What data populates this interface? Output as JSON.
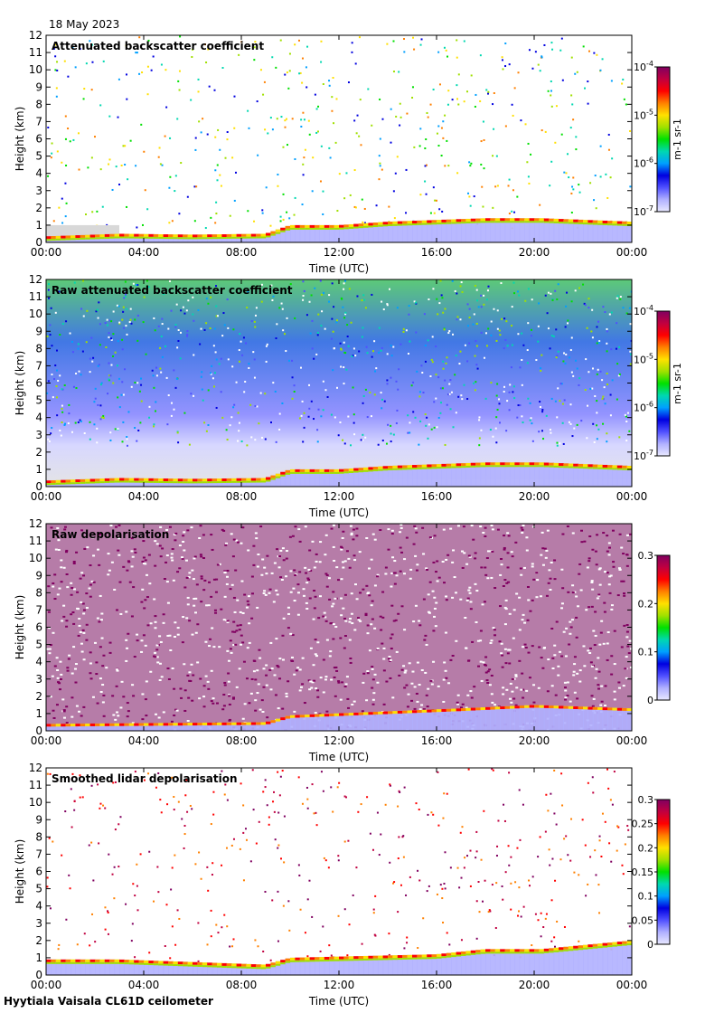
{
  "date": "18 May 2023",
  "footer": "Hyytiala Vaisala CL61D ceilometer",
  "colors": {
    "scale": [
      "#e8e8ff",
      "#b0b0ff",
      "#5050ff",
      "#0000e0",
      "#00a0ff",
      "#00d8b0",
      "#00e000",
      "#a0e000",
      "#ffe000",
      "#ff8000",
      "#ff0000",
      "#c00040",
      "#800060"
    ],
    "background_gray": "#d8d8d8"
  },
  "chart_data": [
    {
      "type": "heatmap",
      "title": "Attenuated backscatter coefficient",
      "xlabel": "Time (UTC)",
      "ylabel": "Height (km)",
      "x_ticks": [
        "00:00",
        "04:00",
        "08:00",
        "12:00",
        "16:00",
        "20:00",
        "00:00"
      ],
      "y_ticks": [
        "0",
        "1",
        "2",
        "3",
        "4",
        "5",
        "6",
        "7",
        "8",
        "9",
        "10",
        "11",
        "12"
      ],
      "xlim": [
        0,
        24
      ],
      "ylim": [
        0,
        12
      ],
      "colorbar": {
        "scale": "log",
        "range": [
          1e-07,
          0.0001
        ],
        "tick_labels": [
          "10-7",
          "10-6",
          "10-5",
          "10-4"
        ],
        "unit": "m-1 sr-1"
      },
      "aerosol_layer_top_km": [
        [
          0,
          0.35
        ],
        [
          3,
          0.5
        ],
        [
          6,
          0.45
        ],
        [
          9,
          0.5
        ],
        [
          10,
          1.0
        ],
        [
          12,
          1.0
        ],
        [
          14,
          1.2
        ],
        [
          16,
          1.3
        ],
        [
          18,
          1.4
        ],
        [
          20.3,
          1.4
        ],
        [
          24,
          1.2
        ]
      ],
      "noise_level": "low"
    },
    {
      "type": "heatmap",
      "title": "Raw attenuated backscatter coefficient",
      "xlabel": "Time (UTC)",
      "ylabel": "Height (km)",
      "x_ticks": [
        "00:00",
        "04:00",
        "08:00",
        "12:00",
        "16:00",
        "20:00",
        "00:00"
      ],
      "y_ticks": [
        "0",
        "1",
        "2",
        "3",
        "4",
        "5",
        "6",
        "7",
        "8",
        "9",
        "10",
        "11",
        "12"
      ],
      "xlim": [
        0,
        24
      ],
      "ylim": [
        0,
        12
      ],
      "colorbar": {
        "scale": "log",
        "range": [
          1e-07,
          0.0001
        ],
        "tick_labels": [
          "10-7",
          "10-6",
          "10-5",
          "10-4"
        ],
        "unit": "m-1 sr-1"
      },
      "aerosol_layer_top_km": [
        [
          0,
          0.35
        ],
        [
          3,
          0.5
        ],
        [
          6,
          0.45
        ],
        [
          9,
          0.5
        ],
        [
          10,
          1.0
        ],
        [
          12,
          1.0
        ],
        [
          14,
          1.2
        ],
        [
          16,
          1.3
        ],
        [
          18,
          1.4
        ],
        [
          20.3,
          1.4
        ],
        [
          24,
          1.2
        ]
      ],
      "noise_level": "high"
    },
    {
      "type": "heatmap",
      "title": "Raw depolarisation",
      "xlabel": "Time (UTC)",
      "ylabel": "Height (km)",
      "x_ticks": [
        "00:00",
        "04:00",
        "08:00",
        "12:00",
        "16:00",
        "20:00",
        "00:00"
      ],
      "y_ticks": [
        "0",
        "1",
        "2",
        "3",
        "4",
        "5",
        "6",
        "7",
        "8",
        "9",
        "10",
        "11",
        "12"
      ],
      "xlim": [
        0,
        24
      ],
      "ylim": [
        0,
        12
      ],
      "colorbar": {
        "scale": "linear",
        "range": [
          0,
          0.3
        ],
        "tick_labels": [
          "0",
          "0.1",
          "0.2",
          "0.3"
        ],
        "unit": ""
      },
      "aerosol_layer_top_km": [
        [
          0,
          0.4
        ],
        [
          9,
          0.5
        ],
        [
          10,
          0.9
        ],
        [
          17,
          1.3
        ],
        [
          20,
          1.5
        ],
        [
          24,
          1.3
        ]
      ],
      "noise_level": "saturated"
    },
    {
      "type": "heatmap",
      "title": "Smoothed lidar depolarisation",
      "xlabel": "Time (UTC)",
      "ylabel": "Height (km)",
      "x_ticks": [
        "00:00",
        "04:00",
        "08:00",
        "12:00",
        "16:00",
        "20:00",
        "00:00"
      ],
      "y_ticks": [
        "0",
        "1",
        "2",
        "3",
        "4",
        "5",
        "6",
        "7",
        "8",
        "9",
        "10",
        "11",
        "12"
      ],
      "xlim": [
        0,
        24
      ],
      "ylim": [
        0,
        12
      ],
      "colorbar": {
        "scale": "linear",
        "range": [
          0,
          0.3
        ],
        "tick_labels": [
          "0",
          "0.05",
          "0.1",
          "0.15",
          "0.2",
          "0.25",
          "0.3"
        ],
        "unit": ""
      },
      "aerosol_layer_top_km": [
        [
          0,
          0.9
        ],
        [
          3,
          0.9
        ],
        [
          9,
          0.6
        ],
        [
          10,
          1.0
        ],
        [
          16,
          1.2
        ],
        [
          18,
          1.5
        ],
        [
          20.3,
          1.5
        ],
        [
          24,
          2.0
        ]
      ],
      "noise_level": "sparse"
    }
  ]
}
